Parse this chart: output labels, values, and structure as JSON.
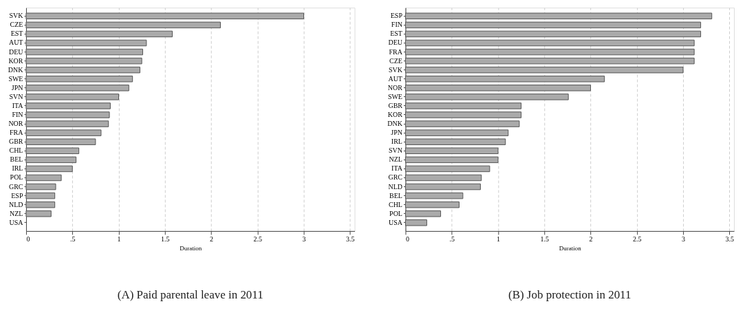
{
  "chart_data": [
    {
      "type": "bar",
      "orientation": "horizontal",
      "title": "(A) Paid parental leave in 2011",
      "xlabel": "Duration",
      "grid": "x",
      "color": "#aaaaaa",
      "categories": [
        "SVK",
        "CZE",
        "EST",
        "AUT",
        "DEU",
        "KOR",
        "DNK",
        "SWE",
        "JPN",
        "SVN",
        "ITA",
        "FIN",
        "NOR",
        "FRA",
        "GBR",
        "CHL",
        "BEL",
        "IRL",
        "POL",
        "GRC",
        "ESP",
        "NLD",
        "NZL",
        "USA"
      ],
      "values": [
        3.0,
        2.1,
        1.58,
        1.3,
        1.26,
        1.25,
        1.23,
        1.15,
        1.11,
        1.0,
        0.91,
        0.9,
        0.89,
        0.81,
        0.75,
        0.57,
        0.54,
        0.5,
        0.38,
        0.32,
        0.31,
        0.31,
        0.27,
        0
      ],
      "xlim": [
        0,
        3.55
      ],
      "xticks": [
        0,
        {
          "value": 0.5,
          "label": ".5"
        },
        1,
        1.5,
        2,
        2.5,
        3,
        3.5
      ]
    },
    {
      "type": "bar",
      "orientation": "horizontal",
      "title": "(B) Job protection in 2011",
      "xlabel": "Duration",
      "grid": "x",
      "color": "#aaaaaa",
      "categories": [
        "ESP",
        "FIN",
        "EST",
        "DEU",
        "FRA",
        "CZE",
        "SVK",
        "AUT",
        "NOR",
        "SWE",
        "GBR",
        "KOR",
        "DNK",
        "JPN",
        "IRL",
        "SVN",
        "NZL",
        "ITA",
        "GRC",
        "NLD",
        "BEL",
        "CHL",
        "POL",
        "USA"
      ],
      "values": [
        3.31,
        3.19,
        3.19,
        3.12,
        3.12,
        3.12,
        3.0,
        2.15,
        2.0,
        1.76,
        1.25,
        1.25,
        1.23,
        1.11,
        1.08,
        1.0,
        1.0,
        0.91,
        0.82,
        0.81,
        0.62,
        0.58,
        0.38,
        0.23
      ],
      "xlim": [
        0,
        3.55
      ],
      "xticks": [
        0,
        {
          "value": 0.5,
          "label": ".5"
        },
        1,
        1.5,
        2,
        2.5,
        3,
        3.5
      ]
    }
  ]
}
